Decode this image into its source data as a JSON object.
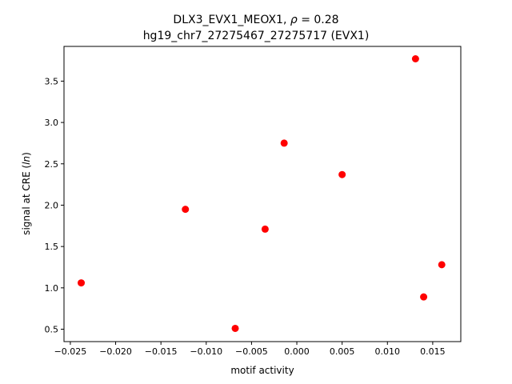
{
  "chart_data": {
    "type": "scatter",
    "title_line1": "DLX3_EVX1_MEOX1, ",
    "title_rho_symbol": "ρ",
    "title_rho_value": " = 0.28",
    "title_line2": "hg19_chr7_27275467_27275717 (EVX1)",
    "xlabel": "motif activity",
    "ylabel_prefix": "signal at CRE (",
    "ylabel_italic": "ln",
    "ylabel_suffix": ")",
    "xlim": [
      -0.0257,
      0.0181
    ],
    "ylim": [
      0.35,
      3.92
    ],
    "x_ticks": [
      -0.025,
      -0.02,
      -0.015,
      -0.01,
      -0.005,
      0.0,
      0.005,
      0.01,
      0.015
    ],
    "x_tick_labels": [
      "−0.025",
      "−0.020",
      "−0.015",
      "−0.010",
      "−0.005",
      "0.000",
      "0.005",
      "0.010",
      "0.015"
    ],
    "y_ticks": [
      0.5,
      1.0,
      1.5,
      2.0,
      2.5,
      3.0,
      3.5
    ],
    "y_tick_labels": [
      "0.5",
      "1.0",
      "1.5",
      "2.0",
      "2.5",
      "3.0",
      "3.5"
    ],
    "point_color": "#ff0000",
    "grid": false,
    "points": [
      {
        "x": -0.0238,
        "y": 1.06
      },
      {
        "x": -0.0123,
        "y": 1.95
      },
      {
        "x": -0.0068,
        "y": 0.51
      },
      {
        "x": -0.0035,
        "y": 1.71
      },
      {
        "x": -0.0014,
        "y": 2.75
      },
      {
        "x": 0.005,
        "y": 2.37
      },
      {
        "x": 0.0131,
        "y": 3.77
      },
      {
        "x": 0.014,
        "y": 0.89
      },
      {
        "x": 0.016,
        "y": 1.28
      }
    ]
  }
}
